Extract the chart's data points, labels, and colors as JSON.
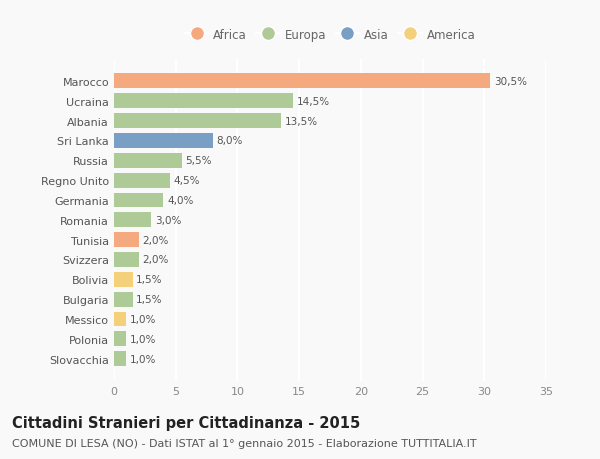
{
  "categories": [
    "Marocco",
    "Ucraina",
    "Albania",
    "Sri Lanka",
    "Russia",
    "Regno Unito",
    "Germania",
    "Romania",
    "Tunisia",
    "Svizzera",
    "Bolivia",
    "Bulgaria",
    "Messico",
    "Polonia",
    "Slovacchia"
  ],
  "values": [
    30.5,
    14.5,
    13.5,
    8.0,
    5.5,
    4.5,
    4.0,
    3.0,
    2.0,
    2.0,
    1.5,
    1.5,
    1.0,
    1.0,
    1.0
  ],
  "labels": [
    "30,5%",
    "14,5%",
    "13,5%",
    "8,0%",
    "5,5%",
    "4,5%",
    "4,0%",
    "3,0%",
    "2,0%",
    "2,0%",
    "1,5%",
    "1,5%",
    "1,0%",
    "1,0%",
    "1,0%"
  ],
  "continents": [
    "Africa",
    "Europa",
    "Europa",
    "Asia",
    "Europa",
    "Europa",
    "Europa",
    "Europa",
    "Africa",
    "Europa",
    "America",
    "Europa",
    "America",
    "Europa",
    "Europa"
  ],
  "continent_colors": {
    "Africa": "#F4A97F",
    "Europa": "#AECA96",
    "Asia": "#7A9FC4",
    "America": "#F5D07A"
  },
  "legend_order": [
    "Africa",
    "Europa",
    "Asia",
    "America"
  ],
  "title": "Cittadini Stranieri per Cittadinanza - 2015",
  "subtitle": "COMUNE DI LESA (NO) - Dati ISTAT al 1° gennaio 2015 - Elaborazione TUTTITALIA.IT",
  "xlim": [
    0,
    35
  ],
  "xticks": [
    0,
    5,
    10,
    15,
    20,
    25,
    30,
    35
  ],
  "background_color": "#f9f9f9",
  "grid_color": "#ffffff",
  "bar_height": 0.75,
  "title_fontsize": 10.5,
  "subtitle_fontsize": 8,
  "label_fontsize": 7.5,
  "tick_fontsize": 8,
  "legend_fontsize": 8.5
}
